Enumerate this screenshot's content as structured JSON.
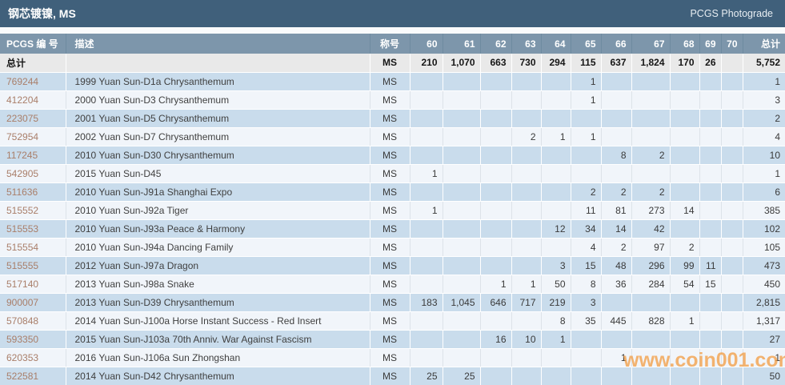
{
  "title_bar": {
    "title": "钢芯镀镍, MS",
    "right_label": "PCGS Photograde"
  },
  "table": {
    "headers": {
      "pcgs": "PCGS 编 号",
      "desc": "描述",
      "designation": "称号",
      "grades": [
        "60",
        "61",
        "62",
        "63",
        "64",
        "65",
        "66",
        "67",
        "68",
        "69",
        "70"
      ],
      "total": "总计"
    },
    "totals_row": {
      "label": "总计",
      "desc": "",
      "designation": "MS",
      "values": [
        "210",
        "1,070",
        "663",
        "730",
        "294",
        "115",
        "637",
        "1,824",
        "170",
        "26",
        ""
      ],
      "total": "5,752"
    },
    "rows": [
      {
        "pcgs": "769244",
        "desc": "1999 Yuan Sun-D1a Chrysanthemum",
        "designation": "MS",
        "values": [
          "",
          "",
          "",
          "",
          "",
          "1",
          "",
          "",
          "",
          "",
          ""
        ],
        "total": "1"
      },
      {
        "pcgs": "412204",
        "desc": "2000 Yuan Sun-D3 Chrysanthemum",
        "designation": "MS",
        "values": [
          "",
          "",
          "",
          "",
          "",
          "1",
          "",
          "",
          "",
          "",
          ""
        ],
        "total": "3"
      },
      {
        "pcgs": "223075",
        "desc": "2001 Yuan Sun-D5 Chrysanthemum",
        "designation": "MS",
        "values": [
          "",
          "",
          "",
          "",
          "",
          "",
          "",
          "",
          "",
          "",
          ""
        ],
        "total": "2"
      },
      {
        "pcgs": "752954",
        "desc": "2002 Yuan Sun-D7 Chrysanthemum",
        "designation": "MS",
        "values": [
          "",
          "",
          "",
          "2",
          "1",
          "1",
          "",
          "",
          "",
          "",
          ""
        ],
        "total": "4"
      },
      {
        "pcgs": "117245",
        "desc": "2010 Yuan Sun-D30 Chrysanthemum",
        "designation": "MS",
        "values": [
          "",
          "",
          "",
          "",
          "",
          "",
          "8",
          "2",
          "",
          "",
          ""
        ],
        "total": "10"
      },
      {
        "pcgs": "542905",
        "desc": "2015 Yuan Sun-D45",
        "designation": "MS",
        "values": [
          "1",
          "",
          "",
          "",
          "",
          "",
          "",
          "",
          "",
          "",
          ""
        ],
        "total": "1"
      },
      {
        "pcgs": "511636",
        "desc": "2010 Yuan Sun-J91a Shanghai Expo",
        "designation": "MS",
        "values": [
          "",
          "",
          "",
          "",
          "",
          "2",
          "2",
          "2",
          "",
          "",
          ""
        ],
        "total": "6"
      },
      {
        "pcgs": "515552",
        "desc": "2010 Yuan Sun-J92a Tiger",
        "designation": "MS",
        "values": [
          "1",
          "",
          "",
          "",
          "",
          "11",
          "81",
          "273",
          "14",
          "",
          ""
        ],
        "total": "385"
      },
      {
        "pcgs": "515553",
        "desc": "2010 Yuan Sun-J93a Peace & Harmony",
        "designation": "MS",
        "values": [
          "",
          "",
          "",
          "",
          "12",
          "34",
          "14",
          "42",
          "",
          "",
          ""
        ],
        "total": "102"
      },
      {
        "pcgs": "515554",
        "desc": "2010 Yuan Sun-J94a Dancing Family",
        "designation": "MS",
        "values": [
          "",
          "",
          "",
          "",
          "",
          "4",
          "2",
          "97",
          "2",
          "",
          ""
        ],
        "total": "105"
      },
      {
        "pcgs": "515555",
        "desc": "2012 Yuan Sun-J97a Dragon",
        "designation": "MS",
        "values": [
          "",
          "",
          "",
          "",
          "3",
          "15",
          "48",
          "296",
          "99",
          "11",
          ""
        ],
        "total": "473"
      },
      {
        "pcgs": "517140",
        "desc": "2013 Yuan Sun-J98a Snake",
        "designation": "MS",
        "values": [
          "",
          "",
          "1",
          "1",
          "50",
          "8",
          "36",
          "284",
          "54",
          "15",
          ""
        ],
        "total": "450"
      },
      {
        "pcgs": "900007",
        "desc": "2013 Yuan Sun-D39 Chrysanthemum",
        "designation": "MS",
        "values": [
          "183",
          "1,045",
          "646",
          "717",
          "219",
          "3",
          "",
          "",
          "",
          "",
          ""
        ],
        "total": "2,815"
      },
      {
        "pcgs": "570848",
        "desc": "2014 Yuan Sun-J100a Horse Instant Success - Red Insert",
        "designation": "MS",
        "values": [
          "",
          "",
          "",
          "",
          "8",
          "35",
          "445",
          "828",
          "1",
          "",
          ""
        ],
        "total": "1,317"
      },
      {
        "pcgs": "593350",
        "desc": "2015 Yuan Sun-J103a 70th Anniv. War Against Fascism",
        "designation": "MS",
        "values": [
          "",
          "",
          "16",
          "10",
          "1",
          "",
          "",
          "",
          "",
          "",
          ""
        ],
        "total": "27"
      },
      {
        "pcgs": "620353",
        "desc": "2016 Yuan Sun-J106a Sun Zhongshan",
        "designation": "MS",
        "values": [
          "",
          "",
          "",
          "",
          "",
          "",
          "1",
          "",
          "",
          "",
          ""
        ],
        "total": "1"
      },
      {
        "pcgs": "522581",
        "desc": "2014 Yuan Sun-D42 Chrysanthemum",
        "designation": "MS",
        "values": [
          "25",
          "25",
          "",
          "",
          "",
          "",
          "",
          "",
          "",
          "",
          ""
        ],
        "total": "50"
      }
    ]
  },
  "watermark": "www.coin001.com",
  "colors": {
    "title_bar": "#40607b",
    "header": "#7d96ab",
    "row_blue": "#c9dcec",
    "row_white": "#f1f5fa",
    "totals_bg": "#e9e9e9",
    "link": "#a97e69",
    "watermark": "#f3993b"
  }
}
